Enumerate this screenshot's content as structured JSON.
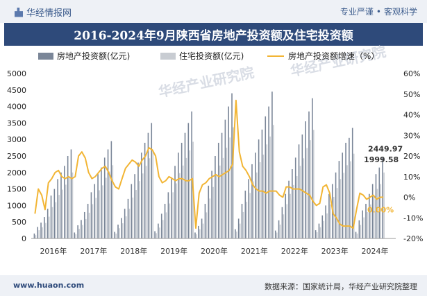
{
  "header": {
    "brand": "华经情报网",
    "tag1": "专业严谨",
    "tag2": "客观科学"
  },
  "title": "2016-2024年9月陕西省房地产投资额及住宅投资额",
  "footer": {
    "url": "www.huaon.com",
    "source": "数据来源：国家统计局，华经产业研究院整理"
  },
  "watermark": "华经产业研究院",
  "colors": {
    "invest": "#7a8698",
    "resid": "#c8ccd2",
    "growth": "#f2b534",
    "anno_green": "#f2b534",
    "title_bg": "#2e4a7a"
  },
  "chart_data": {
    "type": "bar+line",
    "legend": [
      "房地产投资额(亿元)",
      "住宅投资额(亿元)",
      "房地产投资额增速（%）"
    ],
    "y_left": {
      "min": 0,
      "max": 5000,
      "ticks": [
        0,
        500,
        1000,
        1500,
        2000,
        2500,
        3000,
        3500,
        4000,
        4500,
        5000
      ]
    },
    "y_right": {
      "min": -20,
      "max": 60,
      "ticks": [
        "-20%",
        "-10%",
        "0%",
        "10%",
        "20%",
        "30%",
        "40%",
        "50%",
        "60%"
      ]
    },
    "x_labels": [
      "2016年",
      "2017年",
      "2018年",
      "2019年",
      "2020年",
      "2021年",
      "2022年",
      "2023年",
      "2024年"
    ],
    "series": [
      {
        "name": "房地产投资额(亿元)",
        "years": [
          [
            150,
            350,
            480,
            650,
            900,
            1300,
            1500,
            1800,
            2000,
            2200,
            2500,
            2700
          ],
          [
            180,
            400,
            560,
            800,
            1050,
            1400,
            1650,
            1950,
            2150,
            2450,
            2700,
            2950
          ],
          [
            200,
            420,
            620,
            900,
            1200,
            1650,
            1950,
            2300,
            2600,
            2900,
            3200,
            3500
          ],
          [
            220,
            450,
            750,
            1050,
            1400,
            1850,
            2200,
            2600,
            2900,
            3200,
            3500,
            3850
          ],
          [
            180,
            380,
            600,
            1050,
            1600,
            2050,
            2500,
            2900,
            3200,
            3600,
            4000,
            4400
          ],
          [
            280,
            600,
            1050,
            1450,
            1800,
            2250,
            2600,
            3000,
            3300,
            3700,
            4000,
            4450
          ],
          [
            240,
            550,
            950,
            1350,
            1750,
            2100,
            2450,
            2850,
            3150,
            3550,
            3850,
            4250
          ],
          [
            250,
            450,
            700,
            1000,
            1350,
            1650,
            2000,
            2350,
            2600,
            2900,
            3050,
            3350
          ],
          [
            200,
            550,
            850,
            1050,
            1350,
            1650,
            1950,
            2150,
            2450
          ]
        ]
      },
      {
        "name": "住宅投资额(亿元)",
        "years": [
          [
            100,
            250,
            340,
            470,
            660,
            950,
            1100,
            1320,
            1480,
            1630,
            1850,
            2000
          ],
          [
            130,
            290,
            410,
            590,
            780,
            1040,
            1230,
            1460,
            1610,
            1840,
            2030,
            2220
          ],
          [
            150,
            310,
            460,
            670,
            900,
            1240,
            1470,
            1740,
            1970,
            2200,
            2430,
            2660
          ],
          [
            160,
            330,
            560,
            790,
            1060,
            1400,
            1670,
            1980,
            2210,
            2440,
            2670,
            2930
          ],
          [
            130,
            280,
            450,
            790,
            1210,
            1560,
            1900,
            2210,
            2440,
            2750,
            3060,
            3370
          ],
          [
            210,
            450,
            800,
            1110,
            1380,
            1730,
            2000,
            2310,
            2540,
            2850,
            3090,
            3440
          ],
          [
            180,
            420,
            730,
            1040,
            1350,
            1620,
            1890,
            2200,
            2430,
            2740,
            2980,
            3290
          ],
          [
            190,
            340,
            530,
            760,
            1030,
            1260,
            1530,
            1800,
            1990,
            2220,
            2340,
            2570
          ],
          [
            150,
            410,
            640,
            800,
            1030,
            1260,
            1500,
            1650,
            1999.58
          ]
        ]
      },
      {
        "name": "房地产投资额增速（%）",
        "values": [
          -8,
          4,
          1,
          -6,
          7,
          9,
          12,
          13,
          10,
          9,
          10,
          9,
          10,
          20,
          22,
          19,
          12,
          9,
          10,
          12,
          14,
          15,
          12,
          8,
          5,
          4,
          9,
          14,
          16,
          18,
          17,
          15,
          18,
          20,
          24,
          23,
          20,
          10,
          7,
          8,
          10,
          9,
          8,
          9,
          9,
          8,
          8,
          9,
          -15,
          2,
          6,
          7,
          9,
          10,
          11,
          10,
          11,
          12,
          13,
          16,
          47,
          22,
          15,
          13,
          10,
          6,
          4,
          3,
          3,
          2,
          3,
          3,
          3,
          1,
          0,
          5,
          5,
          4,
          4,
          4,
          3,
          2,
          1,
          -2,
          -4,
          -3,
          5,
          6,
          2,
          -8,
          -10,
          -13,
          -14,
          -14,
          -14,
          -15,
          -6,
          2,
          1,
          -1,
          0,
          1,
          -1,
          0,
          0.0
        ]
      }
    ],
    "annotations": {
      "last_invest": "2449.97",
      "last_resid": "1999.58",
      "last_growth": "0.00%"
    }
  }
}
